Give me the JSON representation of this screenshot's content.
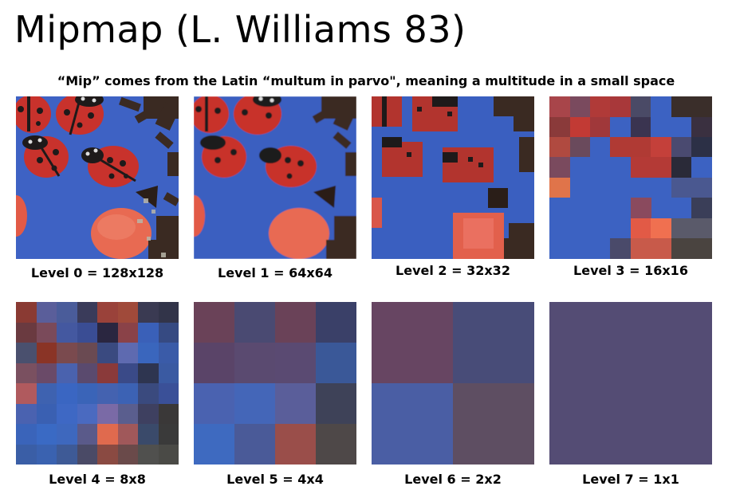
{
  "slide": {
    "title": "Mipmap (L. Williams 83)",
    "subtitle": "“Mip” comes from the Latin “multum in parvo\", meaning a multitude in a small space"
  },
  "levels": [
    {
      "label": "Level 0 = 128x128"
    },
    {
      "label": "Level 1 = 64x64"
    },
    {
      "label": "Level 2 = 32x32"
    },
    {
      "label": "Level 3 = 16x16"
    },
    {
      "label": "Level 4 = 8x8"
    },
    {
      "label": "Level 5 = 4x4"
    },
    {
      "label": "Level 6 = 2x2"
    },
    {
      "label": "Level 7 = 1x1"
    }
  ],
  "colors": {
    "background_blue": "#3a5fc0",
    "ladybug_red": "#c8322c",
    "ladybug_black": "#1e1a1a",
    "candy_orange": "#e86a52",
    "chocolate": "#3a2a22"
  },
  "level4_grid": [
    [
      "#8a3a33",
      "#5a5e9a",
      "#4a5c9a",
      "#3a3b5a",
      "#9a423a",
      "#a04a3a",
      "#3a3a52",
      "#323449"
    ],
    [
      "#6a3a40",
      "#7a4a5a",
      "#4458a0",
      "#3a4d94",
      "#2a2640",
      "#8a4248",
      "#3a60b8",
      "#364a82"
    ],
    [
      "#4a506e",
      "#8a3426",
      "#7a4a4e",
      "#6a4a52",
      "#3a4a80",
      "#5e6ab0",
      "#3a66bd",
      "#3a5ba8"
    ],
    [
      "#7a5060",
      "#6a4a68",
      "#4a62ae",
      "#5a4a6e",
      "#8a3a3a",
      "#3a4a88",
      "#2e3550",
      "#3a5aa2"
    ],
    [
      "#b05a5e",
      "#3e62b0",
      "#3a66c2",
      "#3a64b8",
      "#4462b0",
      "#3c62b4",
      "#3a4a7e",
      "#3a5098"
    ],
    [
      "#4a62b0",
      "#3a60b2",
      "#3e68c4",
      "#4a6ac0",
      "#7a6aa6",
      "#5a5e8e",
      "#3e4060",
      "#3a3838"
    ],
    [
      "#3a64ba",
      "#3a6ac4",
      "#3e68be",
      "#5a5a8a",
      "#e06a4e",
      "#a0585a",
      "#3a4a6a",
      "#3a3a3a"
    ],
    [
      "#3a5ea6",
      "#3a62b0",
      "#3e5a96",
      "#4a4a66",
      "#8a4a42",
      "#6a4a4a",
      "#50504e",
      "#4a4a46"
    ]
  ],
  "level5_grid": [
    [
      "#6a4258",
      "#4a4a72",
      "#6a4258",
      "#3a4068"
    ],
    [
      "#5a4468",
      "#5a4a70",
      "#5a4a72",
      "#3a5898"
    ],
    [
      "#4a62b0",
      "#4466b8",
      "#5a5e9a",
      "#3e4258"
    ],
    [
      "#3e6ac0",
      "#4a5a98",
      "#9a4e4a",
      "#4e4848"
    ]
  ],
  "level6_grid": [
    [
      "#674562",
      "#484c78"
    ],
    [
      "#4a5ea4",
      "#5e4e62"
    ]
  ],
  "level7_color": "#544c74"
}
